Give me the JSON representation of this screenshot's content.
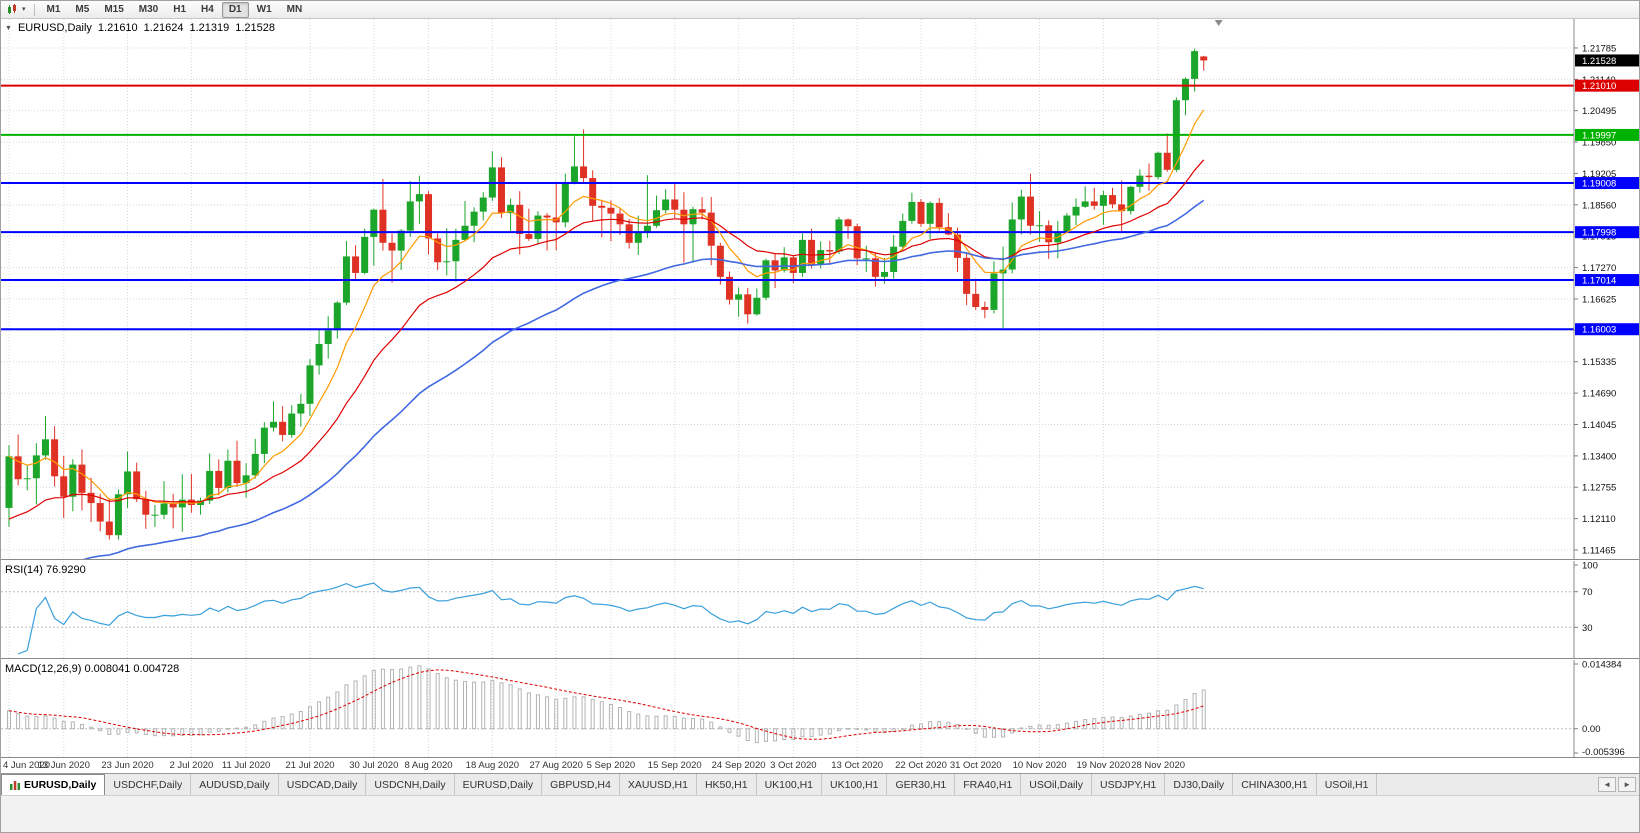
{
  "icons": {
    "collapse": "▼",
    "caret": "▾",
    "tab_left": "◄",
    "tab_right": "►"
  },
  "toolbar": {
    "timeframes": [
      {
        "label": "M1",
        "active": false
      },
      {
        "label": "M5",
        "active": false
      },
      {
        "label": "M15",
        "active": false
      },
      {
        "label": "M30",
        "active": false
      },
      {
        "label": "H1",
        "active": false
      },
      {
        "label": "H4",
        "active": false
      },
      {
        "label": "D1",
        "active": true
      },
      {
        "label": "W1",
        "active": false
      },
      {
        "label": "MN",
        "active": false
      }
    ]
  },
  "chart": {
    "title": {
      "symbol": "EURUSD,Daily",
      "open": "1.21610",
      "high": "1.21624",
      "low": "1.21319",
      "close": "1.21528"
    }
  },
  "chart_data": {
    "type": "candlestick",
    "symbol": "EURUSD",
    "timeframe": "Daily",
    "price_top": 1.2238,
    "price_bottom": 1.1128,
    "y_ticks": [
      "1.21785",
      "1.21140",
      "1.20495",
      "1.19850",
      "1.19205",
      "1.18560",
      "1.17915",
      "1.17270",
      "1.16625",
      "1.15980",
      "1.15335",
      "1.14690",
      "1.14045",
      "1.13400",
      "1.12755",
      "1.12110",
      "1.11465"
    ],
    "x_ticks": [
      {
        "i": 0,
        "label": "4 Jun 2020"
      },
      {
        "i": 6,
        "label": "13 Jun 2020"
      },
      {
        "i": 13,
        "label": "23 Jun 2020"
      },
      {
        "i": 20,
        "label": "2 Jul 2020"
      },
      {
        "i": 26,
        "label": "11 Jul 2020"
      },
      {
        "i": 33,
        "label": "21 Jul 2020"
      },
      {
        "i": 40,
        "label": "30 Jul 2020"
      },
      {
        "i": 46,
        "label": "8 Aug 2020"
      },
      {
        "i": 53,
        "label": "18 Aug 2020"
      },
      {
        "i": 60,
        "label": "27 Aug 2020"
      },
      {
        "i": 66,
        "label": "5 Sep 2020"
      },
      {
        "i": 73,
        "label": "15 Sep 2020"
      },
      {
        "i": 80,
        "label": "24 Sep 2020"
      },
      {
        "i": 86,
        "label": "3 Oct 2020"
      },
      {
        "i": 93,
        "label": "13 Oct 2020"
      },
      {
        "i": 100,
        "label": "22 Oct 2020"
      },
      {
        "i": 106,
        "label": "31 Oct 2020"
      },
      {
        "i": 113,
        "label": "10 Nov 2020"
      },
      {
        "i": 120,
        "label": "19 Nov 2020"
      },
      {
        "i": 126,
        "label": "28 Nov 2020"
      }
    ],
    "candles": [
      [
        1.1233,
        1.1362,
        1.1194,
        1.1339
      ],
      [
        1.1339,
        1.1384,
        1.1279,
        1.1292
      ],
      [
        1.1292,
        1.132,
        1.1269,
        1.1294
      ],
      [
        1.1294,
        1.1366,
        1.124,
        1.1341
      ],
      [
        1.1341,
        1.1422,
        1.1332,
        1.1374
      ],
      [
        1.1374,
        1.1401,
        1.1277,
        1.1298
      ],
      [
        1.1298,
        1.134,
        1.1212,
        1.1256
      ],
      [
        1.1256,
        1.1333,
        1.1226,
        1.1322
      ],
      [
        1.1322,
        1.1353,
        1.1228,
        1.1264
      ],
      [
        1.1264,
        1.1295,
        1.1204,
        1.1243
      ],
      [
        1.1243,
        1.1262,
        1.1185,
        1.1205
      ],
      [
        1.1205,
        1.1253,
        1.1168,
        1.1177
      ],
      [
        1.1177,
        1.1271,
        1.1168,
        1.1261
      ],
      [
        1.1261,
        1.1349,
        1.1233,
        1.1308
      ],
      [
        1.1308,
        1.1326,
        1.1245,
        1.1251
      ],
      [
        1.1251,
        1.1268,
        1.119,
        1.1219
      ],
      [
        1.1219,
        1.1239,
        1.1194,
        1.1219
      ],
      [
        1.1219,
        1.1288,
        1.121,
        1.1242
      ],
      [
        1.1242,
        1.1262,
        1.1191,
        1.1234
      ],
      [
        1.1234,
        1.1302,
        1.1184,
        1.125
      ],
      [
        1.125,
        1.1303,
        1.1223,
        1.1239
      ],
      [
        1.1239,
        1.1254,
        1.1219,
        1.1248
      ],
      [
        1.1248,
        1.1345,
        1.1241,
        1.1309
      ],
      [
        1.1309,
        1.1333,
        1.1259,
        1.1274
      ],
      [
        1.1274,
        1.1353,
        1.1265,
        1.133
      ],
      [
        1.133,
        1.1371,
        1.1276,
        1.1284
      ],
      [
        1.1284,
        1.1325,
        1.1254,
        1.13
      ],
      [
        1.13,
        1.1375,
        1.1293,
        1.1344
      ],
      [
        1.1344,
        1.1409,
        1.1325,
        1.1398
      ],
      [
        1.1398,
        1.1452,
        1.139,
        1.141
      ],
      [
        1.141,
        1.1442,
        1.137,
        1.1383
      ],
      [
        1.1383,
        1.1444,
        1.1377,
        1.1427
      ],
      [
        1.1427,
        1.1467,
        1.14,
        1.1447
      ],
      [
        1.1447,
        1.1539,
        1.1422,
        1.1526
      ],
      [
        1.1526,
        1.1601,
        1.1507,
        1.157
      ],
      [
        1.157,
        1.1627,
        1.154,
        1.1598
      ],
      [
        1.1598,
        1.1658,
        1.1581,
        1.1655
      ],
      [
        1.1655,
        1.1782,
        1.165,
        1.175
      ],
      [
        1.175,
        1.1773,
        1.17,
        1.1716
      ],
      [
        1.1716,
        1.1807,
        1.1713,
        1.179
      ],
      [
        1.179,
        1.1848,
        1.1731,
        1.1846
      ],
      [
        1.1846,
        1.1909,
        1.1762,
        1.1778
      ],
      [
        1.1778,
        1.1797,
        1.1696,
        1.1762
      ],
      [
        1.1762,
        1.1806,
        1.1722,
        1.1803
      ],
      [
        1.1803,
        1.1905,
        1.179,
        1.1863
      ],
      [
        1.1863,
        1.1916,
        1.1817,
        1.1878
      ],
      [
        1.1878,
        1.1884,
        1.1754,
        1.1787
      ],
      [
        1.1787,
        1.1797,
        1.1722,
        1.1738
      ],
      [
        1.1738,
        1.1808,
        1.1711,
        1.174
      ],
      [
        1.174,
        1.1807,
        1.1698,
        1.1784
      ],
      [
        1.1784,
        1.1864,
        1.1782,
        1.1813
      ],
      [
        1.1813,
        1.1851,
        1.1779,
        1.1842
      ],
      [
        1.1842,
        1.1882,
        1.1824,
        1.1871
      ],
      [
        1.1871,
        1.1966,
        1.1864,
        1.1933
      ],
      [
        1.1933,
        1.1954,
        1.1829,
        1.1839
      ],
      [
        1.1839,
        1.1869,
        1.1802,
        1.1856
      ],
      [
        1.1856,
        1.1884,
        1.1754,
        1.1796
      ],
      [
        1.1796,
        1.1848,
        1.1782,
        1.1786
      ],
      [
        1.1786,
        1.1843,
        1.1774,
        1.1834
      ],
      [
        1.1834,
        1.1839,
        1.1762,
        1.183
      ],
      [
        1.183,
        1.19,
        1.1763,
        1.182
      ],
      [
        1.182,
        1.192,
        1.181,
        1.1903
      ],
      [
        1.1903,
        1.1997,
        1.1898,
        1.1935
      ],
      [
        1.1935,
        1.2011,
        1.1903,
        1.1911
      ],
      [
        1.1911,
        1.1927,
        1.1823,
        1.1854
      ],
      [
        1.1854,
        1.1865,
        1.1789,
        1.185
      ],
      [
        1.185,
        1.1865,
        1.1781,
        1.1838
      ],
      [
        1.1838,
        1.1849,
        1.1794,
        1.1816
      ],
      [
        1.1816,
        1.1827,
        1.1766,
        1.1778
      ],
      [
        1.1778,
        1.1834,
        1.1753,
        1.1801
      ],
      [
        1.1801,
        1.1917,
        1.1788,
        1.1813
      ],
      [
        1.1813,
        1.1875,
        1.1809,
        1.1845
      ],
      [
        1.1845,
        1.1888,
        1.1839,
        1.1867
      ],
      [
        1.1867,
        1.1901,
        1.1829,
        1.1846
      ],
      [
        1.1846,
        1.1882,
        1.1737,
        1.1816
      ],
      [
        1.1816,
        1.1852,
        1.1737,
        1.1847
      ],
      [
        1.1847,
        1.1872,
        1.1826,
        1.184
      ],
      [
        1.184,
        1.1872,
        1.1732,
        1.1772
      ],
      [
        1.1772,
        1.1778,
        1.1692,
        1.1708
      ],
      [
        1.1708,
        1.1719,
        1.1651,
        1.1661
      ],
      [
        1.1661,
        1.1686,
        1.1626,
        1.1672
      ],
      [
        1.1672,
        1.1685,
        1.1612,
        1.1631
      ],
      [
        1.1631,
        1.1684,
        1.1628,
        1.1665
      ],
      [
        1.1665,
        1.1745,
        1.166,
        1.1742
      ],
      [
        1.1742,
        1.1755,
        1.1685,
        1.1721
      ],
      [
        1.1721,
        1.1769,
        1.1717,
        1.1748
      ],
      [
        1.1748,
        1.1752,
        1.1695,
        1.1716
      ],
      [
        1.1716,
        1.1797,
        1.1708,
        1.1784
      ],
      [
        1.1784,
        1.1807,
        1.1725,
        1.1733
      ],
      [
        1.1733,
        1.1781,
        1.1725,
        1.1763
      ],
      [
        1.1763,
        1.1782,
        1.1733,
        1.176
      ],
      [
        1.176,
        1.1831,
        1.1755,
        1.1826
      ],
      [
        1.1826,
        1.1828,
        1.1786,
        1.1812
      ],
      [
        1.1812,
        1.1817,
        1.1732,
        1.1746
      ],
      [
        1.1746,
        1.1772,
        1.1718,
        1.1746
      ],
      [
        1.1746,
        1.1758,
        1.1688,
        1.1708
      ],
      [
        1.1708,
        1.1747,
        1.1694,
        1.1718
      ],
      [
        1.1718,
        1.1794,
        1.1704,
        1.177
      ],
      [
        1.177,
        1.1838,
        1.176,
        1.1823
      ],
      [
        1.1823,
        1.1881,
        1.1817,
        1.1862
      ],
      [
        1.1862,
        1.1868,
        1.1811,
        1.1817
      ],
      [
        1.1817,
        1.1863,
        1.1786,
        1.186
      ],
      [
        1.186,
        1.187,
        1.1803,
        1.181
      ],
      [
        1.181,
        1.1839,
        1.1793,
        1.1795
      ],
      [
        1.1795,
        1.1809,
        1.1718,
        1.1747
      ],
      [
        1.1747,
        1.1759,
        1.165,
        1.1673
      ],
      [
        1.1673,
        1.1704,
        1.164,
        1.1646
      ],
      [
        1.1646,
        1.1657,
        1.1623,
        1.164
      ],
      [
        1.164,
        1.174,
        1.1633,
        1.1715
      ],
      [
        1.1715,
        1.177,
        1.1603,
        1.1723
      ],
      [
        1.1723,
        1.1861,
        1.1715,
        1.1826
      ],
      [
        1.1826,
        1.1887,
        1.1795,
        1.1873
      ],
      [
        1.1873,
        1.192,
        1.1795,
        1.1813
      ],
      [
        1.1813,
        1.1843,
        1.178,
        1.1814
      ],
      [
        1.1814,
        1.1824,
        1.1745,
        1.1779
      ],
      [
        1.1779,
        1.1823,
        1.1746,
        1.1801
      ],
      [
        1.1801,
        1.1839,
        1.1799,
        1.1834
      ],
      [
        1.1834,
        1.1869,
        1.1814,
        1.1852
      ],
      [
        1.1852,
        1.1894,
        1.185,
        1.1863
      ],
      [
        1.1863,
        1.1891,
        1.1846,
        1.1854
      ],
      [
        1.1854,
        1.1885,
        1.1815,
        1.1876
      ],
      [
        1.1876,
        1.1891,
        1.1849,
        1.1857
      ],
      [
        1.1857,
        1.1906,
        1.18,
        1.1843
      ],
      [
        1.1843,
        1.1895,
        1.1836,
        1.1893
      ],
      [
        1.1893,
        1.1929,
        1.1881,
        1.1916
      ],
      [
        1.1916,
        1.1941,
        1.1885,
        1.1913
      ],
      [
        1.1913,
        1.1965,
        1.1908,
        1.1963
      ],
      [
        1.1963,
        1.2003,
        1.1924,
        1.1928
      ],
      [
        1.1928,
        1.2077,
        1.1923,
        1.2071
      ],
      [
        1.2071,
        1.2118,
        1.204,
        1.2115
      ],
      [
        1.2115,
        1.2177,
        1.2089,
        1.2172
      ],
      [
        1.2161,
        1.21624,
        1.21319,
        1.21528
      ]
    ],
    "levels": [
      {
        "price": 1.2101,
        "tag": "1.21010",
        "color": "#dd0000",
        "width": 2
      },
      {
        "price": 1.19997,
        "tag": "1.19997",
        "color": "#00b200",
        "width": 2
      },
      {
        "price": 1.19008,
        "tag": "1.19008",
        "color": "#0000ff",
        "width": 2
      },
      {
        "price": 1.17998,
        "tag": "1.17998",
        "color": "#0000ff",
        "width": 2
      },
      {
        "price": 1.17014,
        "tag": "1.17014",
        "color": "#0000ff",
        "width": 2
      },
      {
        "price": 1.16003,
        "tag": "1.16003",
        "color": "#0000ff",
        "width": 2
      }
    ],
    "current_price_tag": {
      "price": 1.21528,
      "label": "1.21528",
      "color": "#000000"
    },
    "moving_averages": [
      {
        "name": "ma-fast",
        "period": 8,
        "seed": null,
        "color": "#ff9a00",
        "width": 1.2
      },
      {
        "name": "ma-mid",
        "period": 20,
        "seed": 1.121,
        "color": "#e00000",
        "width": 1.2
      },
      {
        "name": "ma-slow",
        "period": 45,
        "seed": 1.105,
        "color": "#4169e1",
        "width": 1.6
      }
    ],
    "indicators": {
      "rsi": {
        "label": "RSI(14) 76.9290",
        "period": 14,
        "scale": [
          {
            "label": "100",
            "value": 100
          },
          {
            "label": "70",
            "value": 70
          },
          {
            "label": "30",
            "value": 30
          }
        ],
        "guide_levels": [
          70,
          30
        ],
        "color": "#3aa0dc",
        "range": [
          0,
          100
        ]
      },
      "macd": {
        "label": "MACD(12,26,9) 0.008041 0.004728",
        "fast_period": 12,
        "slow_period": 26,
        "signal_period": 9,
        "fast_seed_offset": 0,
        "slow_seed_offset": -0.004,
        "y_top": 0.014384,
        "y_bottom": -0.005396,
        "scale": [
          {
            "label": "0.014384",
            "value": 0.014384
          },
          {
            "label": "0.00",
            "value": 0
          },
          {
            "label": "-0.005396",
            "value": -0.005396
          }
        ]
      }
    },
    "colors": {
      "up": "#1ba62b",
      "down": "#e03224",
      "grid": "#d8d8d8",
      "axis_border": "#8a8a8a",
      "macd_hist": "#b4b4b4",
      "macd_signal": "#e00000"
    }
  },
  "tabs": {
    "items": [
      {
        "label": "EURUSD,Daily",
        "active": true
      },
      {
        "label": "USDCHF,Daily",
        "active": false
      },
      {
        "label": "AUDUSD,Daily",
        "active": false
      },
      {
        "label": "USDCAD,Daily",
        "active": false
      },
      {
        "label": "USDCNH,Daily",
        "active": false
      },
      {
        "label": "EURUSD,Daily",
        "active": false
      },
      {
        "label": "GBPUSD,H4",
        "active": false
      },
      {
        "label": "XAUUSD,H1",
        "active": false
      },
      {
        "label": "HK50,H1",
        "active": false
      },
      {
        "label": "UK100,H1",
        "active": false
      },
      {
        "label": "UK100,H1",
        "active": false
      },
      {
        "label": "GER30,H1",
        "active": false
      },
      {
        "label": "FRA40,H1",
        "active": false
      },
      {
        "label": "USOil,Daily",
        "active": false
      },
      {
        "label": "USDJPY,H1",
        "active": false
      },
      {
        "label": "DJ30,Daily",
        "active": false
      },
      {
        "label": "CHINA300,H1",
        "active": false
      },
      {
        "label": "USOil,H1",
        "active": false
      }
    ]
  }
}
